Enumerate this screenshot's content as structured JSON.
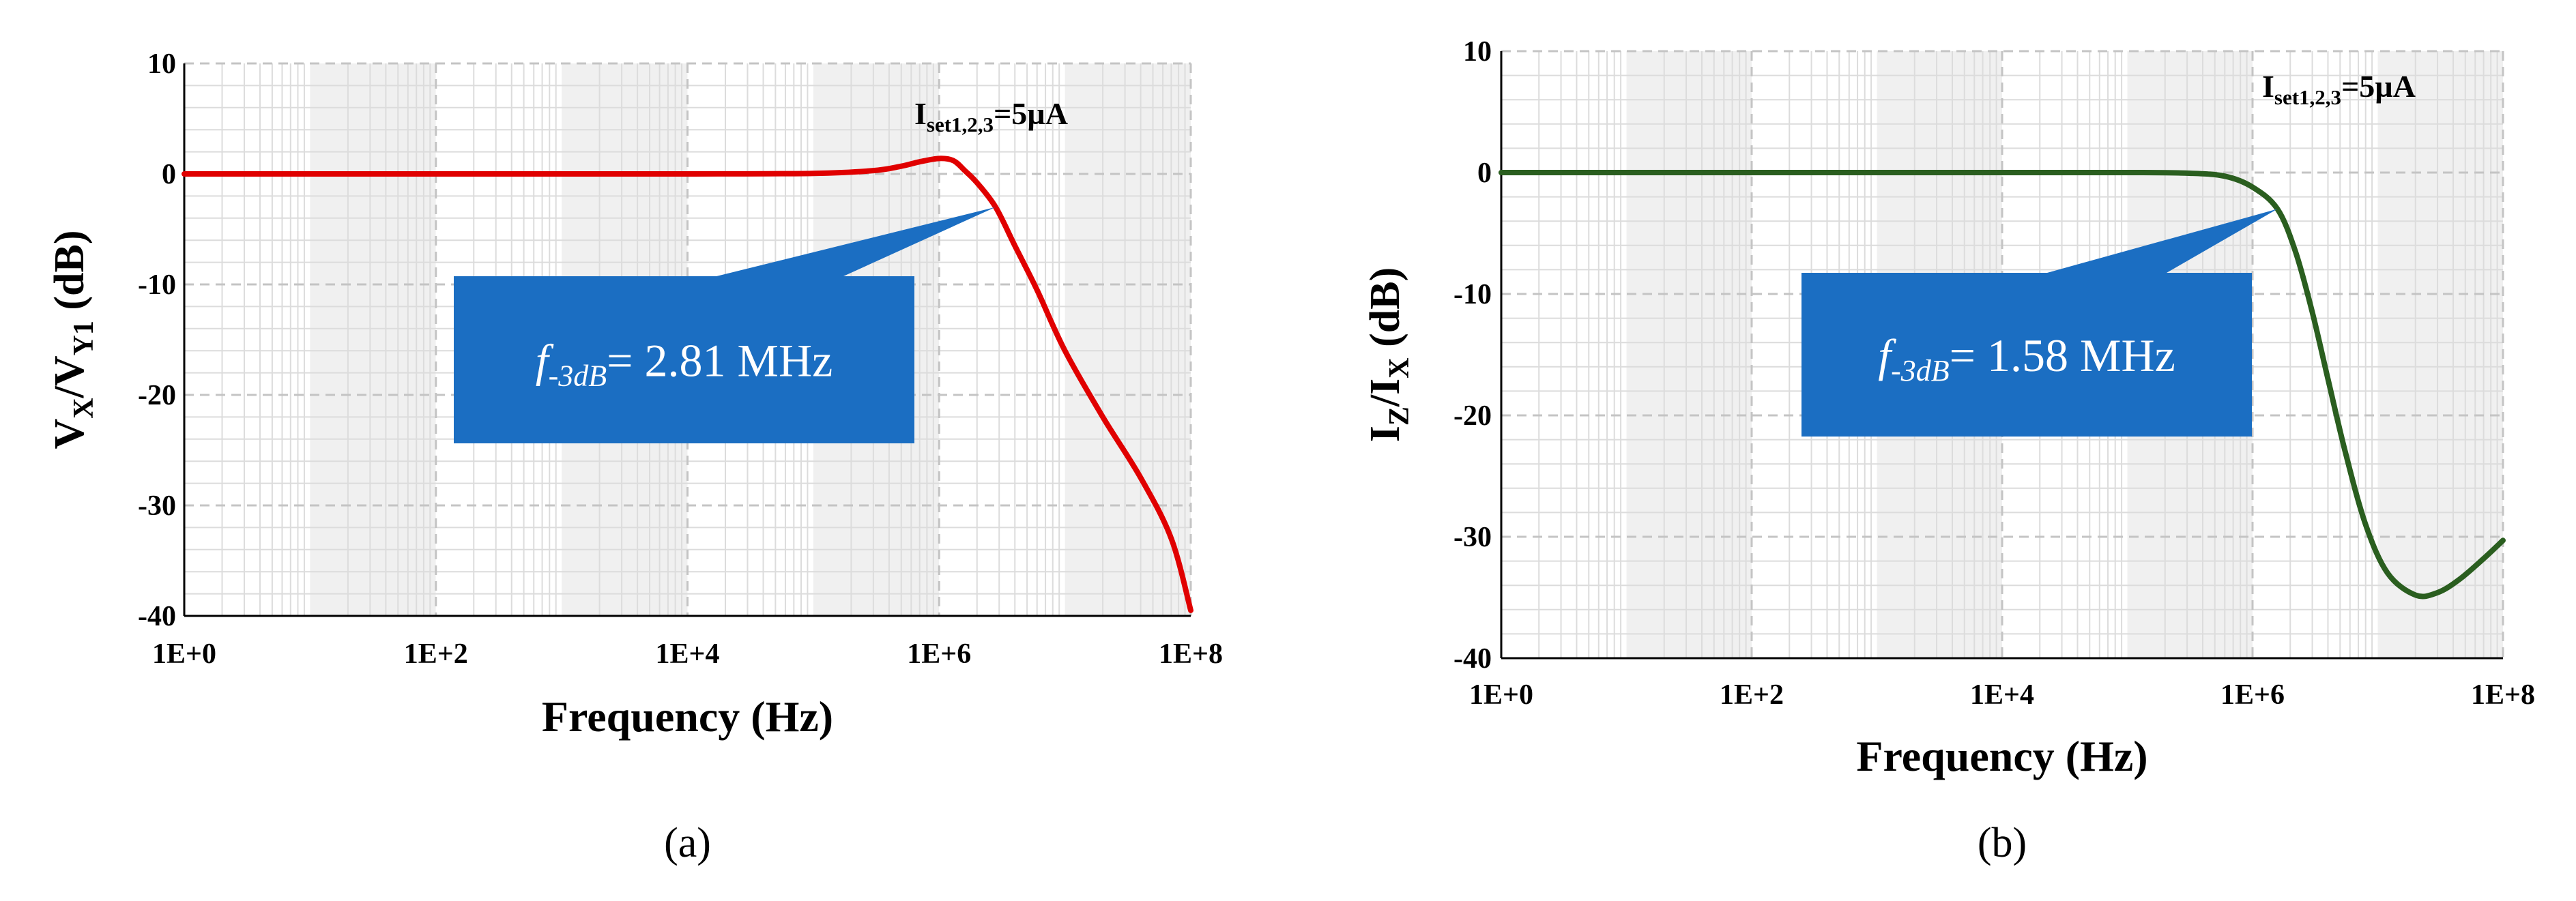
{
  "chart_data": [
    {
      "type": "line",
      "panel_label": "(a)",
      "xlabel": "Frequency (Hz)",
      "ylabel": {
        "main1": "V",
        "sub1": "X",
        "sep": "/V",
        "sub2": "Y1",
        "unit": " (dB)"
      },
      "xscale": "log",
      "x_ticks": [
        "1E+0",
        "1E+2",
        "1E+4",
        "1E+6",
        "1E+8"
      ],
      "ylim": [
        -40,
        10
      ],
      "y_ticks": [
        "10",
        "0",
        "-10",
        "-20",
        "-30",
        "-40"
      ],
      "grid": true,
      "line_color": "#e00000",
      "annotation": {
        "main": "I",
        "sub": "set1,2,3",
        "rest": "=5µA"
      },
      "callout": {
        "label": "f",
        "sub": "-3dB",
        "value": "= 2.81 MHz",
        "color": "#1b6ec2",
        "points_to_x": 2810000,
        "points_to_y": -3
      },
      "series": [
        {
          "x": [
            1,
            10,
            100,
            1000,
            10000,
            100000,
            300000,
            500000,
            700000,
            1000000,
            1300000,
            1600000,
            2000000,
            2810000,
            4000000,
            6000000,
            10000000,
            20000000,
            40000000,
            70000000,
            100000000
          ],
          "y": [
            0,
            0,
            0,
            0,
            0,
            0.05,
            0.3,
            0.7,
            1.1,
            1.4,
            1.2,
            0.3,
            -0.8,
            -3,
            -6.5,
            -10.5,
            -16,
            -22,
            -27.5,
            -33,
            -39.5
          ]
        }
      ]
    },
    {
      "type": "line",
      "panel_label": "(b)",
      "xlabel": "Frequency (Hz)",
      "ylabel": {
        "main1": "I",
        "sub1": "Z",
        "sep": "/I",
        "sub2": "X",
        "unit": " (dB)"
      },
      "xscale": "log",
      "x_ticks": [
        "1E+0",
        "1E+2",
        "1E+4",
        "1E+6",
        "1E+8"
      ],
      "ylim": [
        -40,
        10
      ],
      "y_ticks": [
        "10",
        "0",
        "-10",
        "-20",
        "-30",
        "-40"
      ],
      "grid": true,
      "line_color": "#2a5e1f",
      "annotation": {
        "main": "I",
        "sub": "set1,2,3",
        "rest": "=5µA"
      },
      "callout": {
        "label": "f",
        "sub": "-3dB",
        "value": "= 1.58 MHz",
        "color": "#1b6ec2",
        "points_to_x": 1580000,
        "points_to_y": -3
      },
      "series": [
        {
          "x": [
            1,
            10,
            100,
            1000,
            10000,
            100000,
            300000,
            600000,
            1000000,
            1580000,
            2200000,
            3000000,
            4000000,
            5500000,
            8000000,
            12000000,
            20000000,
            30000000,
            45000000,
            70000000,
            100000000
          ],
          "y": [
            0,
            0,
            0,
            0,
            0,
            0,
            -0.05,
            -0.3,
            -1.2,
            -3,
            -6.5,
            -11.5,
            -17,
            -23,
            -29,
            -33,
            -34.8,
            -34.6,
            -33.5,
            -31.8,
            -30.3
          ]
        }
      ]
    }
  ]
}
